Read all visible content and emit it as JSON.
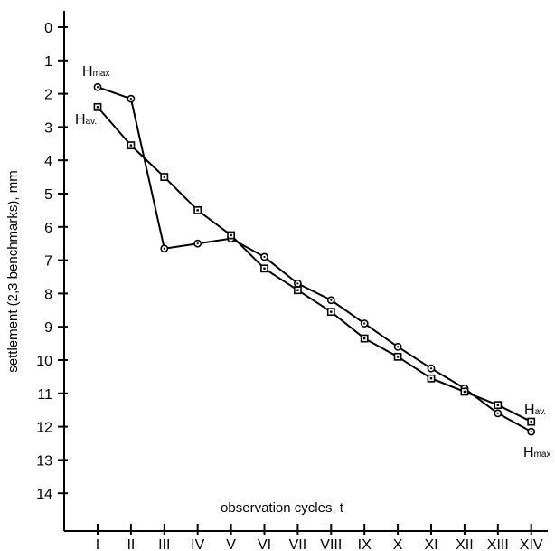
{
  "chart_data": {
    "type": "line",
    "xlabel": "observation cycles, t",
    "ylabel": "settlement (2,3 benchmarks), mm",
    "categories": [
      "I",
      "II",
      "III",
      "IV",
      "V",
      "VI",
      "VII",
      "VIII",
      "IX",
      "X",
      "XI",
      "XII",
      "XIII",
      "XIV"
    ],
    "y_ticks": [
      "0",
      "1",
      "2",
      "3",
      "4",
      "5",
      "6",
      "7",
      "8",
      "9",
      "10",
      "11",
      "12",
      "13",
      "14"
    ],
    "ylim": [
      0,
      15
    ],
    "y_inverted": true,
    "grid": false,
    "series": [
      {
        "name": "Hmax",
        "label_main": "H",
        "label_sub": "max",
        "marker": "circle",
        "values": [
          1.8,
          2.15,
          6.65,
          6.5,
          6.35,
          6.9,
          7.7,
          8.2,
          8.9,
          9.6,
          10.25,
          10.85,
          11.6,
          12.15
        ]
      },
      {
        "name": "Hav.",
        "label_main": "H",
        "label_sub": "av.",
        "marker": "square",
        "values": [
          2.4,
          3.55,
          4.5,
          5.5,
          6.25,
          7.25,
          7.9,
          8.55,
          9.35,
          9.9,
          10.55,
          10.95,
          11.35,
          11.85
        ]
      }
    ],
    "colors": {
      "line": "#000000",
      "marker_fill": "#ffffff"
    }
  }
}
